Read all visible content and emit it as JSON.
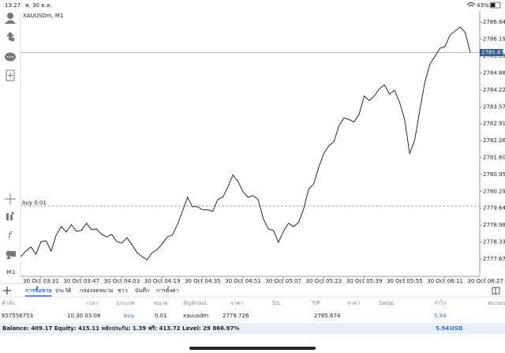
{
  "status_bar": {
    "time": "13:27",
    "date": "พ. 30 ต.ค.",
    "battery": "43%"
  },
  "toolbar": {
    "timeframe": "M1"
  },
  "chart_data": {
    "type": "line",
    "symbol": "XAUUSDm, M1",
    "color": "#111111",
    "categories": [
      null,
      null,
      null,
      null,
      "30 Oct 03:31",
      null,
      null,
      null,
      null,
      null,
      null,
      null,
      "30 Oct 03:47",
      null,
      null,
      null,
      null,
      null,
      null,
      null,
      "30 Oct 04:03",
      null,
      null,
      null,
      null,
      null,
      null,
      null,
      "30 Oct 04:19",
      null,
      null,
      null,
      null,
      null,
      null,
      null,
      "30 Oct 04:35",
      null,
      null,
      null,
      null,
      null,
      null,
      null,
      "30 Oct 04:51",
      null,
      null,
      null,
      null,
      null,
      null,
      null,
      "30 Oct 05:07",
      null,
      null,
      null,
      null,
      null,
      null,
      null,
      "30 Oct 05:23",
      null,
      null,
      null,
      null,
      null,
      null,
      null,
      "30 Oct 05:39",
      null,
      null,
      null,
      null,
      null,
      null,
      null,
      "30 Oct 05:55",
      null,
      null,
      null,
      null,
      null,
      null,
      null,
      "30 Oct 06:11",
      null,
      null,
      null,
      null,
      null,
      null,
      null,
      "30 Oct 06:27"
    ],
    "values": [
      2777.77,
      2777.98,
      2778.14,
      2777.86,
      2778.35,
      2778.38,
      2777.98,
      2778.6,
      2778.93,
      2778.72,
      2779.0,
      2778.75,
      2778.78,
      2779.06,
      2778.81,
      2778.84,
      2778.63,
      2778.53,
      2778.63,
      2778.35,
      2778.29,
      2778.5,
      2778.23,
      2777.92,
      2777.77,
      2777.64,
      2777.92,
      2778.04,
      2778.26,
      2778.53,
      2778.6,
      2779.0,
      2779.52,
      2780.07,
      2779.7,
      2779.7,
      2779.58,
      2779.58,
      2779.52,
      2779.98,
      2780.07,
      2780.47,
      2780.93,
      2780.68,
      2780.28,
      2780.07,
      2780.13,
      2779.98,
      2779.24,
      2778.84,
      2778.78,
      2778.32,
      2778.75,
      2779.06,
      2778.93,
      2779.09,
      2779.61,
      2780.38,
      2780.59,
      2781.23,
      2781.76,
      2782.06,
      2782.22,
      2782.83,
      2783.14,
      2783.08,
      2782.98,
      2783.29,
      2783.99,
      2783.81,
      2783.99,
      2784.27,
      2784.42,
      2784.06,
      2784.21,
      2783.75,
      2783.08,
      2781.76,
      2782.28,
      2783.44,
      2784.52,
      2785.22,
      2785.53,
      2785.84,
      2785.9,
      2786.36,
      2786.51,
      2786.66,
      2786.45,
      2785.67,
      null,
      null,
      null
    ],
    "ylim": [
      2777.0,
      2787.28
    ],
    "yticks": [
      2786.845,
      {
        "value": 2786.19,
        "label": "2786.190"
      },
      2785.535,
      {
        "value": 2784.88,
        "label": "2784.880"
      },
      2784.225,
      2783.57,
      2782.915,
      2782.26,
      2781.605,
      {
        "value": 2780.95,
        "label": "2780.950"
      },
      2780.295,
      {
        "value": 2779.64,
        "label": "2779.640"
      },
      2778.985,
      {
        "value": 2778.33,
        "label": "2778.330"
      },
      2777.675
    ],
    "last_price": 2785.674,
    "position_line": {
      "label": "buy 0.01",
      "value": 2779.726
    }
  },
  "tabs": [
    "การซื้อขาย",
    "ประวัติ",
    "กล่องจดหมาย",
    "ข่าว",
    "บันทึก",
    "การตั้งค่า"
  ],
  "active_tab": 0,
  "table": {
    "columns": [
      "คำสั่ง",
      "เวลา",
      "ประเภท",
      "ขนาด",
      "สัญลักษณ์",
      "ราคา",
      "S/L",
      "T/P",
      "ราคา",
      "Swap",
      "กำไร",
      "หมายเหตุ"
    ],
    "rows": [
      [
        "657556753",
        "10.30 03:08",
        "buy",
        "0.01",
        "xauusdm",
        "2779.726",
        null,
        null,
        "2785.674",
        null,
        "5.94",
        null
      ]
    ]
  },
  "summary": {
    "text": "Balance: 409.17 Equity: 415.11 หลักประกัน: 1.39 ฟรี: 413.72 Level: 29 866.97%",
    "profit": "5.94",
    "currency": "USD"
  }
}
